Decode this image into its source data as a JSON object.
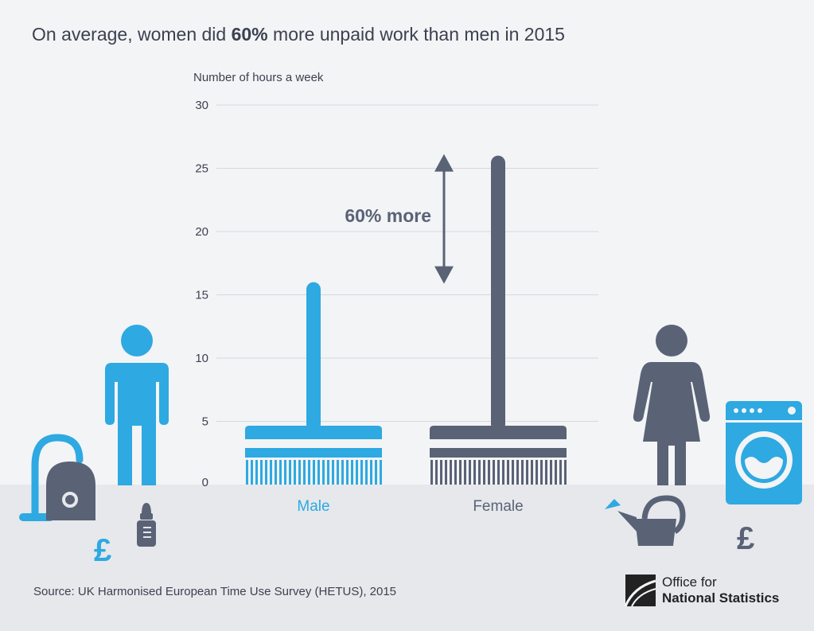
{
  "title": {
    "prefix": "On average, women did ",
    "emphasis": "60%",
    "suffix": " more unpaid work than men in 2015"
  },
  "source": "Source: UK Harmonised European Time Use Survey (HETUS), 2015",
  "logo": {
    "line1": "Office for",
    "line2": "National Statistics"
  },
  "colors": {
    "male": "#2ea9e1",
    "female": "#5a6276",
    "grid": "#d6d8dd",
    "text": "#3c4150",
    "floor": "#e6e8ec",
    "background": "#f3f4f6"
  },
  "icons": [
    "vacuum-cleaner-icon",
    "man-icon",
    "pound-icon",
    "baby-bottle-icon",
    "woman-icon",
    "washing-machine-icon",
    "watering-can-icon",
    "pound-icon",
    "ons-logo-icon"
  ],
  "chart_data": {
    "type": "bar",
    "ylabel": "Number of hours a week",
    "ylim": [
      0,
      30
    ],
    "yticks": [
      0,
      5,
      10,
      15,
      20,
      25,
      30
    ],
    "categories": [
      "Male",
      "Female"
    ],
    "values": [
      16,
      26
    ],
    "grid": true,
    "annotation": {
      "text": "60% more",
      "from": 16,
      "to": 26
    }
  }
}
